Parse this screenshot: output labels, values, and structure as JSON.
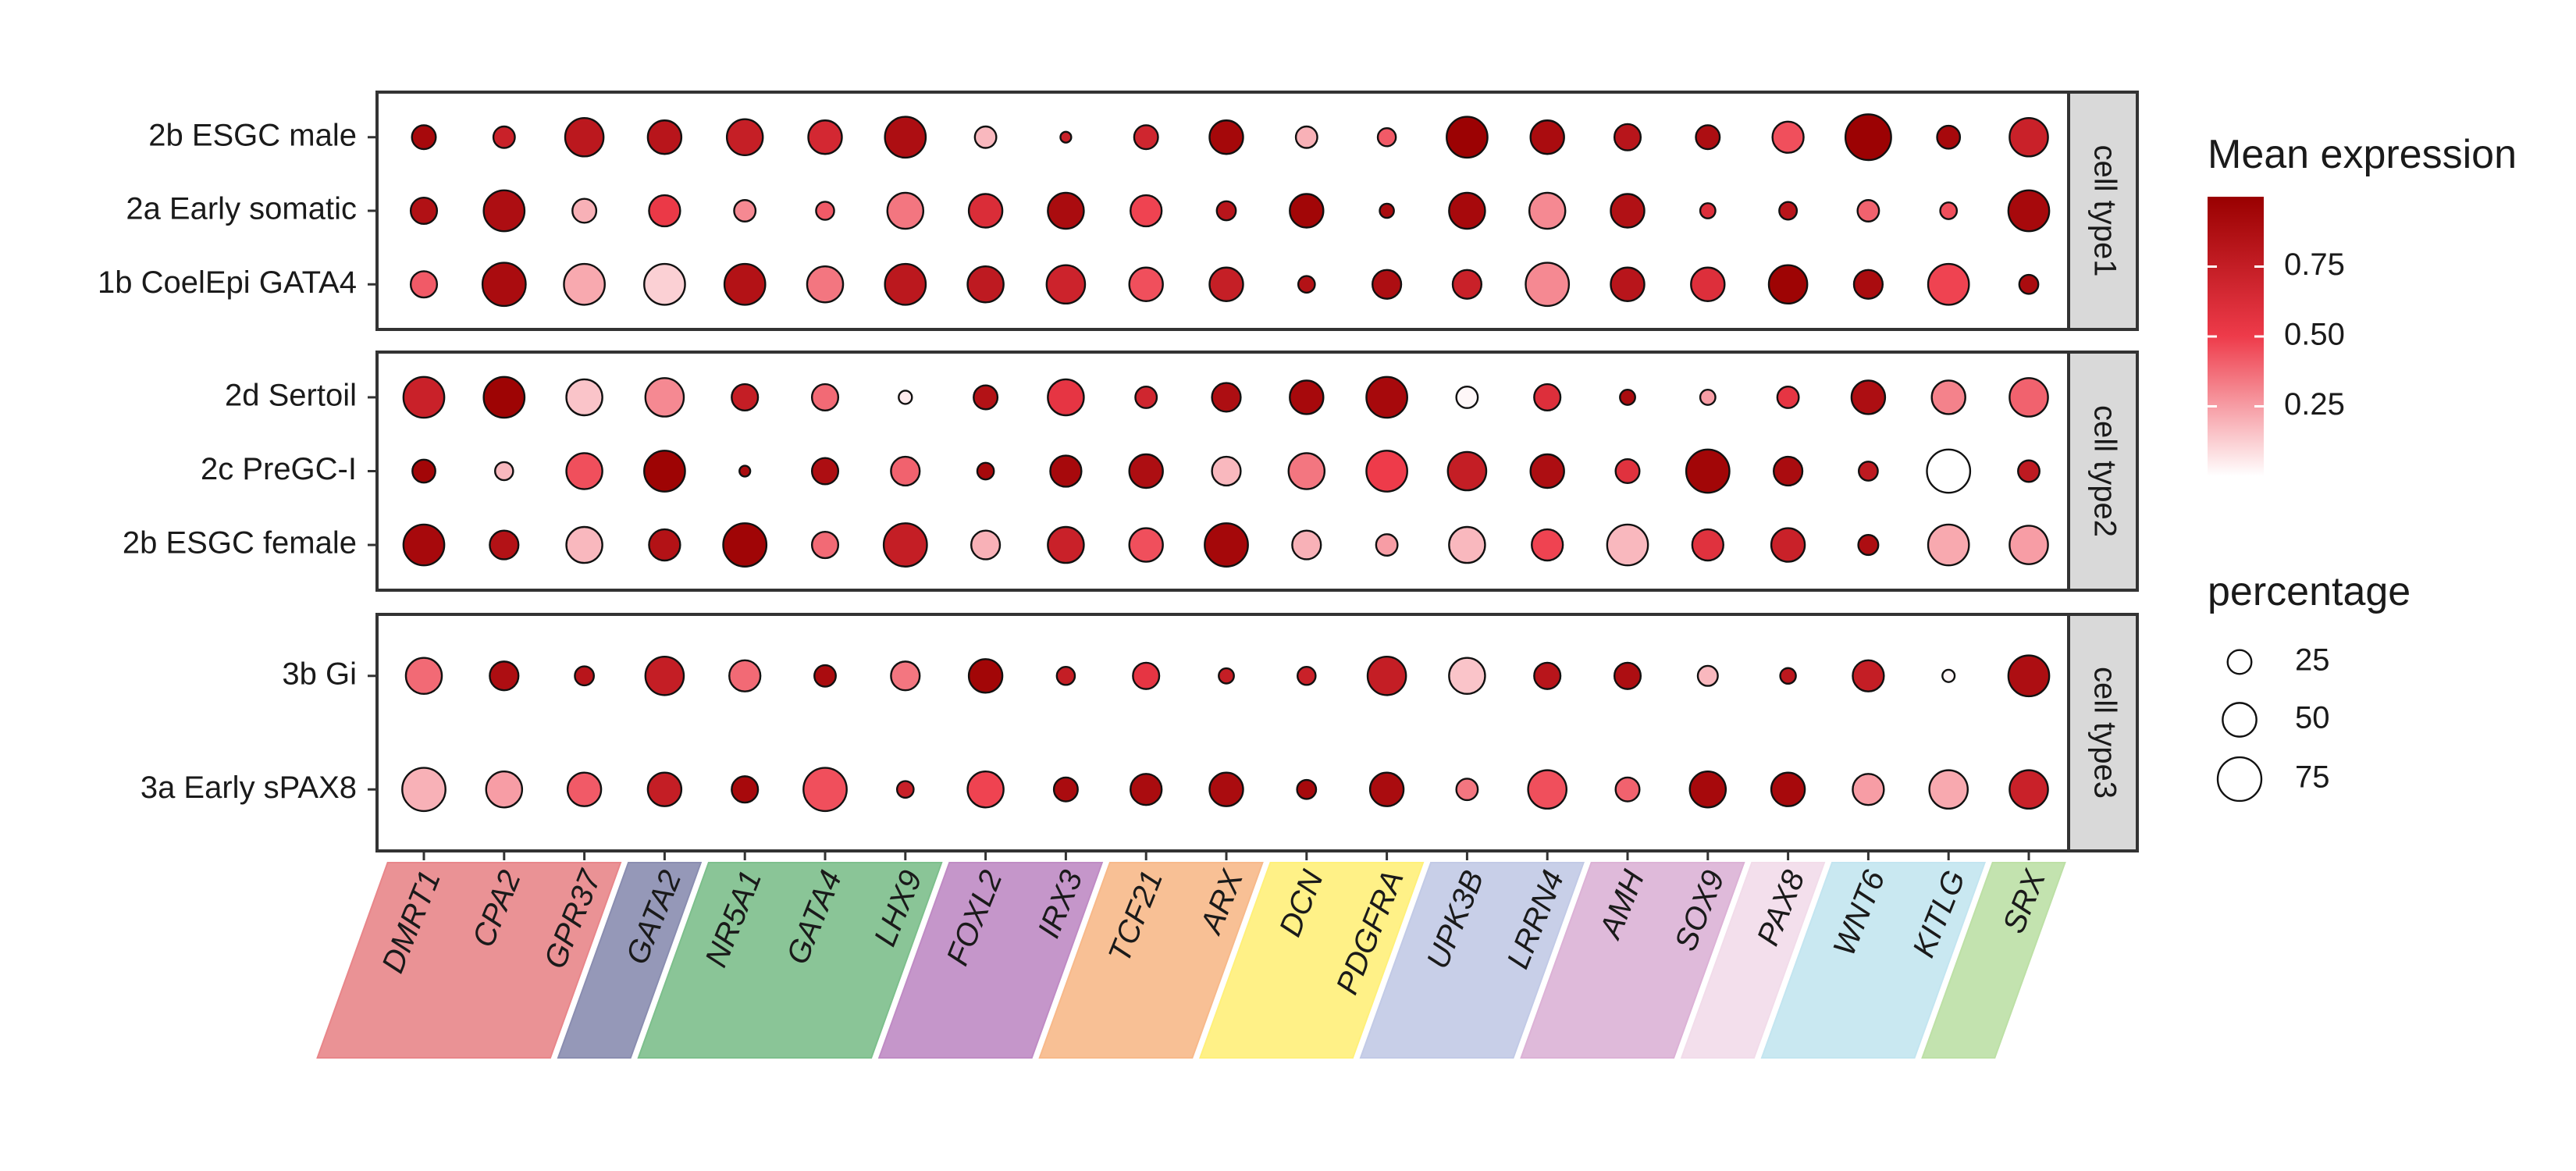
{
  "chart_data": {
    "type": "dotplot",
    "genes": [
      "DMRT1",
      "CPA2",
      "GPR37",
      "GATA2",
      "NR5A1",
      "GATA4",
      "LHX9",
      "FOXL2",
      "IRX3",
      "TCF21",
      "ARX",
      "DCN",
      "PDGFRA",
      "UPK3B",
      "LRRN4",
      "AMH",
      "SOX9",
      "PAX8",
      "WNT6",
      "KITLG",
      "SRX"
    ],
    "gene_groups": [
      {
        "color": "#e8868a",
        "genes": [
          "DMRT1",
          "CPA2",
          "GPR37"
        ]
      },
      {
        "color": "#8a8db0",
        "genes": [
          "GATA2"
        ]
      },
      {
        "color": "#7dbf8c",
        "genes": [
          "NR5A1",
          "GATA4",
          "LHX9"
        ]
      },
      {
        "color": "#bf8bc4",
        "genes": [
          "FOXL2",
          "IRX3"
        ]
      },
      {
        "color": "#f7b98a",
        "genes": [
          "TCF21",
          "ARX"
        ]
      },
      {
        "color": "#fff07a",
        "genes": [
          "DCN",
          "PDGFRA"
        ]
      },
      {
        "color": "#c2cae6",
        "genes": [
          "UPK3B",
          "LRRN4"
        ]
      },
      {
        "color": "#dcb2d6",
        "genes": [
          "AMH",
          "SOX9"
        ]
      },
      {
        "color": "#f2dcea",
        "genes": [
          "PAX8"
        ]
      },
      {
        "color": "#c3e5f0",
        "genes": [
          "WNT6",
          "KITLG"
        ]
      },
      {
        "color": "#bde0a6",
        "genes": [
          "SRX"
        ]
      }
    ],
    "panels": [
      {
        "strip": "cell type1",
        "rows": [
          {
            "label": "2b ESGC male",
            "expression": [
              0.92,
              0.72,
              0.8,
              0.82,
              0.74,
              0.66,
              0.88,
              0.18,
              0.72,
              0.68,
              0.93,
              0.2,
              0.42,
              0.98,
              0.9,
              0.82,
              0.88,
              0.45,
              0.98,
              0.92,
              0.72
            ],
            "percentage": [
              30,
              25,
              60,
              50,
              55,
              50,
              65,
              25,
              3,
              30,
              50,
              25,
              18,
              65,
              50,
              35,
              30,
              45,
              75,
              28,
              60
            ]
          },
          {
            "label": "2a Early somatic",
            "expression": [
              0.86,
              0.88,
              0.2,
              0.52,
              0.3,
              0.42,
              0.35,
              0.62,
              0.9,
              0.48,
              0.82,
              0.95,
              0.9,
              0.92,
              0.3,
              0.86,
              0.6,
              0.82,
              0.4,
              0.45,
              0.92
            ],
            "percentage": [
              35,
              65,
              30,
              45,
              25,
              18,
              55,
              50,
              55,
              45,
              20,
              50,
              10,
              55,
              55,
              50,
              12,
              17,
              25,
              15,
              65
            ]
          },
          {
            "label": "1b CoelEpi GATA4",
            "expression": [
              0.42,
              0.9,
              0.22,
              0.12,
              0.85,
              0.35,
              0.8,
              0.78,
              0.7,
              0.45,
              0.74,
              0.85,
              0.88,
              0.72,
              0.3,
              0.82,
              0.6,
              0.97,
              0.9,
              0.48,
              0.9
            ],
            "percentage": [
              35,
              70,
              65,
              65,
              65,
              55,
              65,
              55,
              60,
              50,
              50,
              15,
              40,
              40,
              70,
              50,
              50,
              60,
              40,
              65,
              20
            ]
          }
        ]
      },
      {
        "strip": "cell type2",
        "rows": [
          {
            "label": "2d Sertoil",
            "expression": [
              0.72,
              0.97,
              0.15,
              0.3,
              0.75,
              0.38,
              0.05,
              0.85,
              0.55,
              0.68,
              0.88,
              0.92,
              0.92,
              0.02,
              0.6,
              0.9,
              0.25,
              0.55,
              0.88,
              0.32,
              0.4
            ],
            "percentage": [
              65,
              65,
              55,
              60,
              35,
              35,
              8,
              30,
              55,
              25,
              40,
              50,
              65,
              25,
              35,
              12,
              12,
              25,
              50,
              50,
              60
            ]
          },
          {
            "label": "2c PreGC-I",
            "expression": [
              0.95,
              0.18,
              0.45,
              0.97,
              0.9,
              0.88,
              0.4,
              0.92,
              0.92,
              0.88,
              0.18,
              0.35,
              0.5,
              0.75,
              0.88,
              0.58,
              0.95,
              0.9,
              0.78,
              0.0,
              0.78
            ],
            "percentage": [
              28,
              18,
              55,
              65,
              3,
              35,
              40,
              15,
              45,
              50,
              40,
              55,
              65,
              60,
              50,
              30,
              70,
              40,
              20,
              70,
              25
            ]
          },
          {
            "label": "2b ESGC female",
            "expression": [
              0.92,
              0.85,
              0.18,
              0.85,
              0.96,
              0.38,
              0.75,
              0.2,
              0.72,
              0.45,
              0.93,
              0.2,
              0.25,
              0.18,
              0.48,
              0.18,
              0.58,
              0.72,
              0.88,
              0.22,
              0.25
            ],
            "percentage": [
              65,
              40,
              55,
              45,
              70,
              35,
              70,
              40,
              55,
              50,
              70,
              40,
              25,
              55,
              45,
              65,
              45,
              50,
              22,
              65,
              60
            ]
          }
        ]
      },
      {
        "strip": "cell type3",
        "rows": [
          {
            "label": "3b Gi",
            "expression": [
              0.38,
              0.88,
              0.82,
              0.75,
              0.38,
              0.9,
              0.35,
              0.95,
              0.75,
              0.55,
              0.75,
              0.72,
              0.75,
              0.15,
              0.82,
              0.88,
              0.18,
              0.8,
              0.75,
              0.02,
              0.88
            ],
            "percentage": [
              55,
              40,
              20,
              60,
              45,
              25,
              40,
              50,
              18,
              35,
              12,
              18,
              60,
              55,
              35,
              35,
              22,
              13,
              45,
              6,
              65
            ]
          },
          {
            "label": "3a Early sPAX8",
            "expression": [
              0.2,
              0.25,
              0.42,
              0.75,
              0.92,
              0.45,
              0.72,
              0.48,
              0.9,
              0.9,
              0.9,
              0.92,
              0.9,
              0.35,
              0.45,
              0.4,
              0.92,
              0.92,
              0.25,
              0.22,
              0.72
            ],
            "percentage": [
              70,
              55,
              50,
              50,
              35,
              70,
              15,
              55,
              30,
              45,
              50,
              20,
              50,
              25,
              60,
              30,
              55,
              50,
              45,
              60,
              60
            ]
          }
        ]
      }
    ],
    "color_legend": {
      "title": "Mean expression",
      "ticks": [
        "0.75",
        "0.50",
        "0.25"
      ],
      "tick_values": [
        0.75,
        0.5,
        0.25
      ],
      "range": [
        0,
        1
      ],
      "low_color": "#ffffff",
      "mid_color": "#ee3b4a",
      "high_color": "#990000"
    },
    "size_legend": {
      "title": "percentage",
      "labels": [
        "25",
        "50",
        "75"
      ],
      "values": [
        25,
        50,
        75
      ]
    }
  }
}
